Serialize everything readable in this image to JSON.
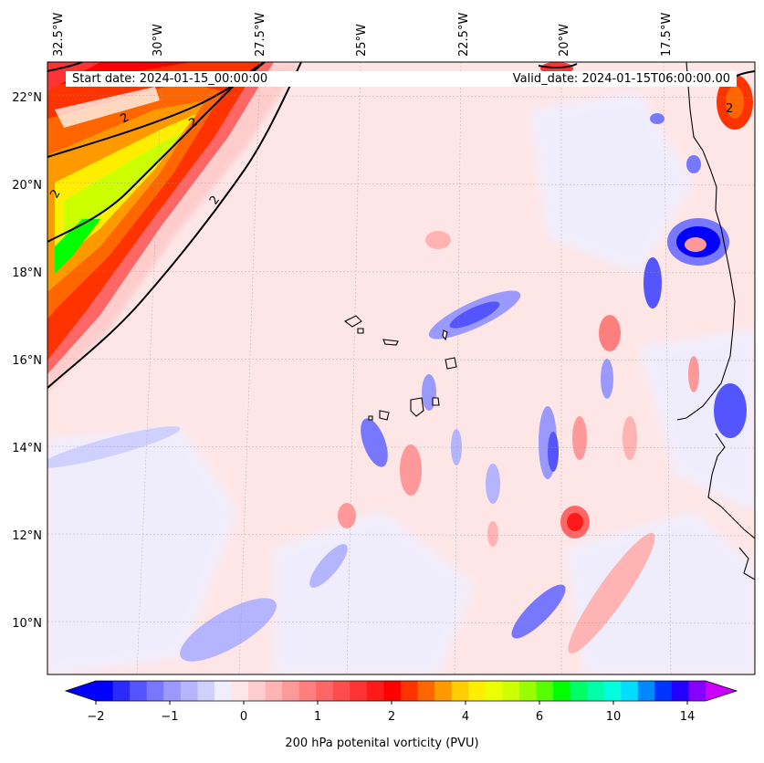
{
  "header": {
    "start_date": "Start date: 2024-01-15_00:00:00",
    "valid_date": "Valid_date: 2024-01-15T06:00:00.00"
  },
  "axes": {
    "lon_labels": [
      "32.5°W",
      "30°W",
      "27.5°W",
      "25°W",
      "22.5°W",
      "20°W",
      "17.5°W"
    ],
    "lat_labels": [
      "22°N",
      "20°N",
      "18°N",
      "16°N",
      "14°N",
      "12°N",
      "10°N"
    ],
    "contour_label": "2"
  },
  "colorbar": {
    "label": "200 hPa potenital vorticity (PVU)",
    "tick_labels": [
      "−2",
      "−1",
      "0",
      "1",
      "2",
      "4",
      "6",
      "10",
      "14"
    ],
    "colors": [
      "#0000ff",
      "#2b2bff",
      "#5555ff",
      "#7777ff",
      "#9999ff",
      "#b4b4ff",
      "#d0d0ff",
      "#eeeeff",
      "#ffe6e6",
      "#ffcccc",
      "#ffb3b3",
      "#ff9999",
      "#ff7f7f",
      "#ff6666",
      "#ff4c4c",
      "#ff3333",
      "#ff1a1a",
      "#ff0000",
      "#ff3300",
      "#ff6600",
      "#ff9900",
      "#ffcc00",
      "#ffee00",
      "#eeff00",
      "#ccff00",
      "#99ff00",
      "#55ff00",
      "#00ff00",
      "#00ff66",
      "#00ffaa",
      "#00ffdd",
      "#00ddff",
      "#0088ff",
      "#0033ff",
      "#2200ff",
      "#8800ff"
    ],
    "under_color": "#0000ff",
    "over_color": "#cc00ff"
  }
}
